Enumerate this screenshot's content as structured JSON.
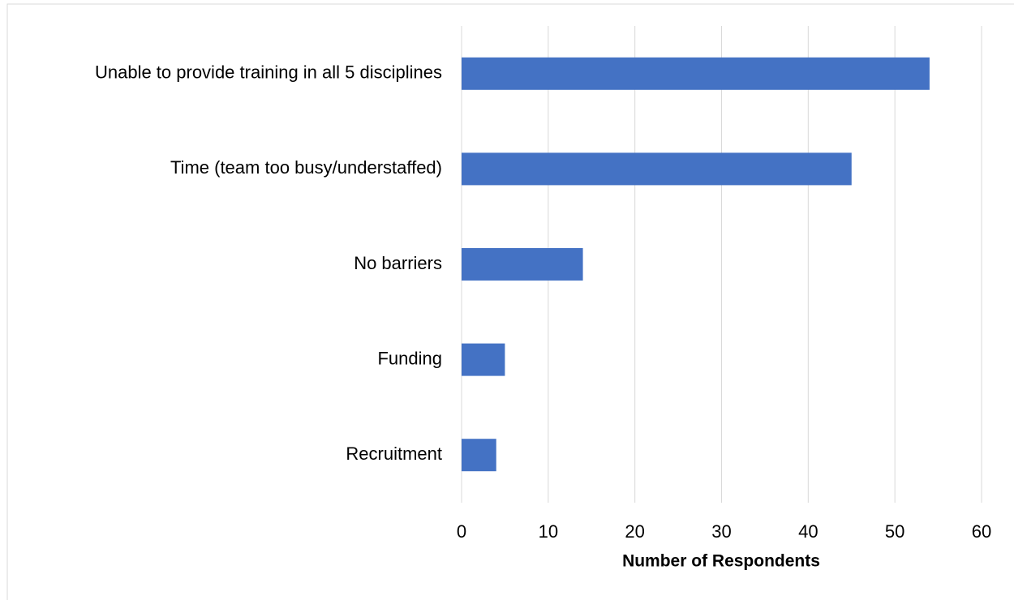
{
  "chart_data": {
    "type": "bar",
    "orientation": "horizontal",
    "categories": [
      "Unable to provide training in all 5 disciplines",
      "Time (team too busy/understaffed)",
      "No barriers",
      "Funding",
      "Recruitment"
    ],
    "values": [
      54,
      45,
      14,
      5,
      4
    ],
    "color": "#4472c4",
    "xlabel": "Number of Respondents",
    "xlim": [
      0,
      60
    ],
    "xticks": [
      0,
      10,
      20,
      30,
      40,
      50,
      60
    ],
    "grid": true
  }
}
